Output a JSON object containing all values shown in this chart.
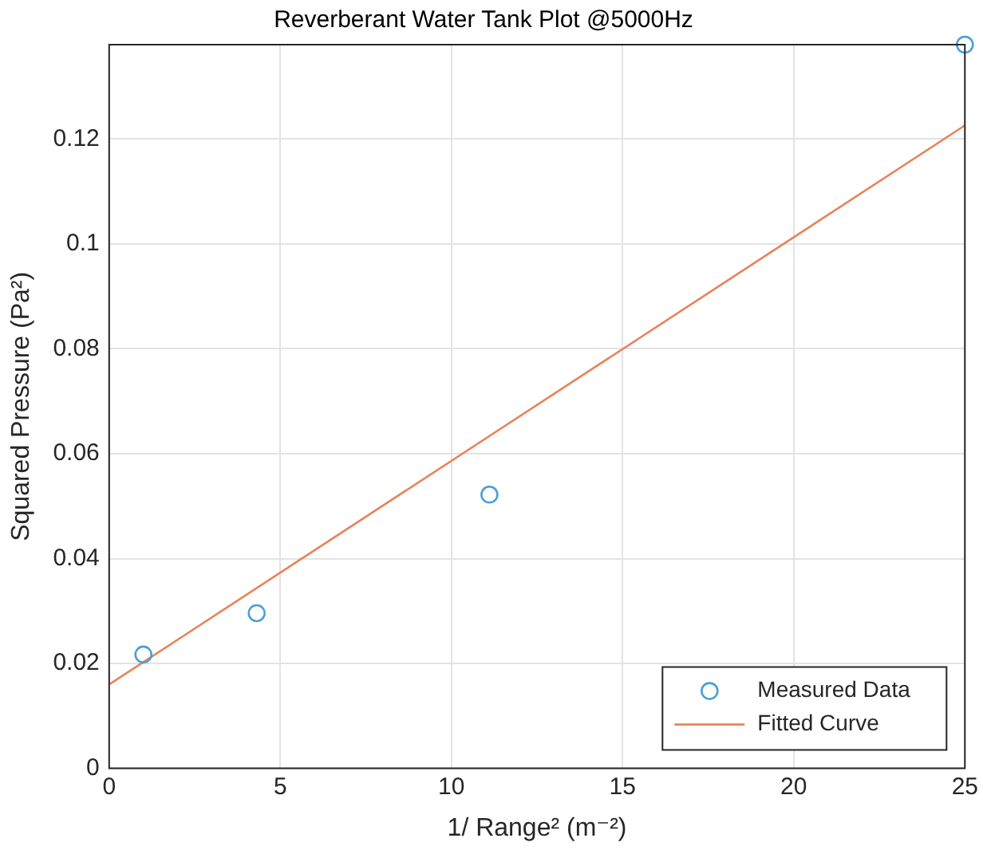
{
  "chart_data": {
    "type": "scatter",
    "title": "Reverberant Water Tank Plot @5000Hz",
    "xlabel": "1/ Range² (m⁻²)",
    "ylabel": "Squared Pressure (Pa²)",
    "xlim": [
      0,
      25
    ],
    "xticks": [
      0,
      5,
      10,
      15,
      20,
      25
    ],
    "ylim": [
      0,
      0.138
    ],
    "yticks": [
      0,
      0.02,
      0.04,
      0.06,
      0.08,
      0.1,
      0.12
    ],
    "grid": true,
    "legend": "bottom right",
    "marker": "circle",
    "series": [
      {
        "name": "Measured Data",
        "color": "#4a9fd8",
        "x": [
          1,
          4.31,
          11.11,
          25
        ],
        "values": [
          0.0217,
          0.0296,
          0.0522,
          0.138
        ]
      },
      {
        "name": "Fitted Curve",
        "type": "line",
        "color": "#e8835a",
        "x": [
          0,
          25
        ],
        "values": [
          0.016,
          0.1226
        ],
        "line_style": "solid",
        "marker": "none"
      }
    ]
  }
}
